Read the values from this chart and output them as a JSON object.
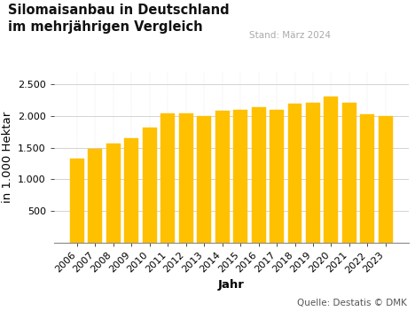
{
  "title_line1": "Silomaisanbau in Deutschland",
  "title_line2": "im mehrjährigen Vergleich",
  "stand_text": "Stand: März 2024",
  "source_text": "Quelle: Destatis © DMK",
  "xlabel": "Jahr",
  "ylabel": "in 1.000 Hektar",
  "years": [
    2006,
    2007,
    2008,
    2009,
    2010,
    2011,
    2012,
    2013,
    2014,
    2015,
    2016,
    2017,
    2018,
    2019,
    2020,
    2021,
    2022,
    2023
  ],
  "values": [
    1330,
    1480,
    1570,
    1650,
    1820,
    2040,
    2040,
    2000,
    2080,
    2090,
    2130,
    2090,
    2190,
    2210,
    2300,
    2210,
    2030,
    2000
  ],
  "bar_color": "#FFC000",
  "bar_edge_color": "#FFC000",
  "background_color": "#ffffff",
  "grid_color": "#cccccc",
  "ylim": [
    0,
    2700
  ],
  "yticks": [
    500,
    1000,
    1500,
    2000,
    2500
  ],
  "title_fontsize": 10.5,
  "axis_label_fontsize": 9.5,
  "tick_fontsize": 8,
  "source_fontsize": 7.5,
  "stand_fontsize": 7.5
}
